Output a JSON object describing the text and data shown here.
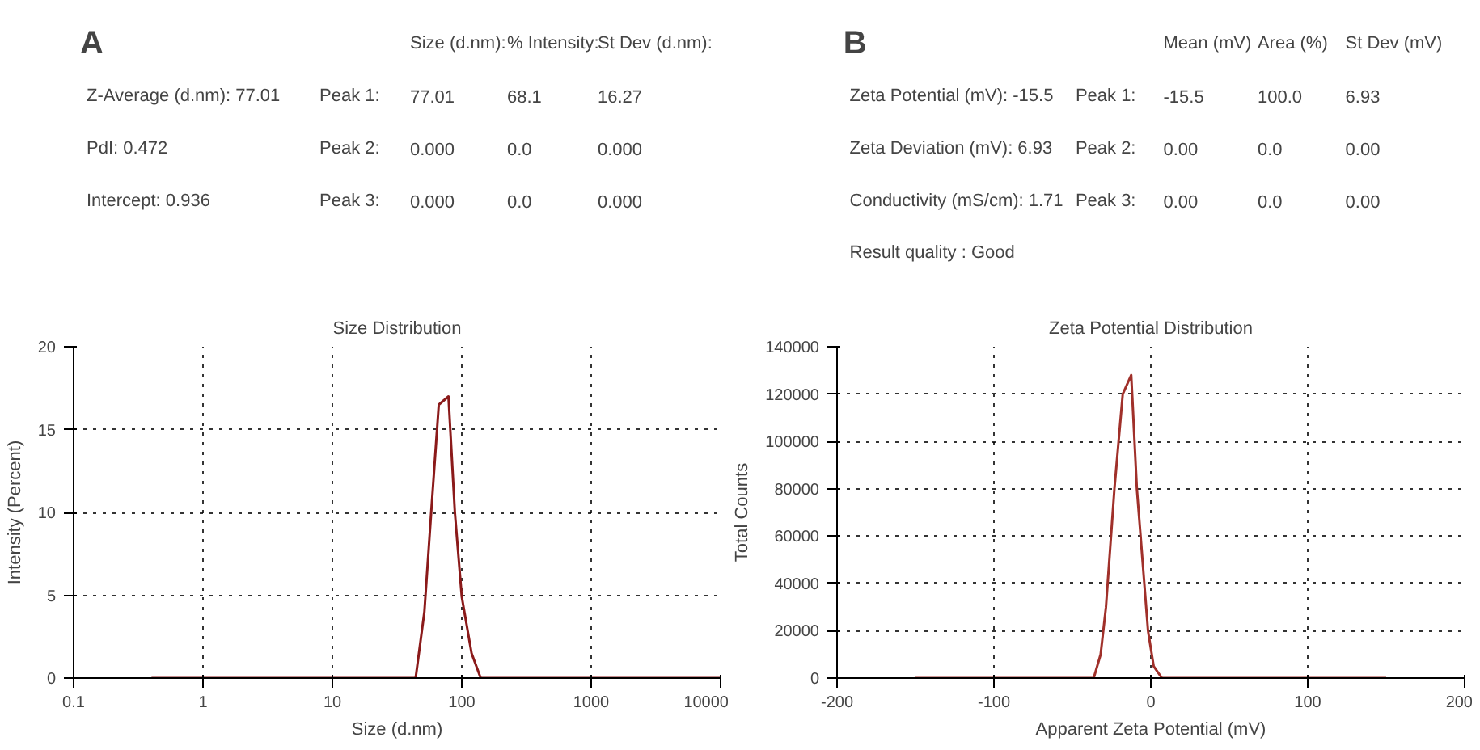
{
  "chart_data": [
    {
      "type": "other",
      "title": "A",
      "annotations": [
        "Z-Average (d.nm): 77.01",
        "PdI: 0.472",
        "Intercept: 0.936",
        "Size (d.nm):",
        "% Intensity:",
        "St Dev (d.nm):",
        "Peak 1:",
        "77.01",
        "68.1",
        "16.27",
        "Peak 2:",
        "0.000",
        "0.0",
        "0.000",
        "Peak 3:",
        "0.000",
        "0.0",
        "0.000"
      ]
    },
    {
      "type": "line",
      "title": "Size Distribution",
      "xlabel": "Size (d.nm)",
      "ylabel": "Intensity (Percent)",
      "log": "x",
      "grid": true,
      "line_style": "solid",
      "xlim": [
        0.1,
        10000
      ],
      "ylim": [
        0,
        20
      ],
      "xticks": [
        0.1,
        1,
        10,
        100,
        1000,
        10000
      ],
      "yticks": [
        0,
        5,
        10,
        15,
        20
      ],
      "series": [
        {
          "color": "#8b1a1a",
          "x": [
            0.4,
            44,
            51.4,
            58,
            66.4,
            78.9,
            88.4,
            100,
            119,
            140,
            10000
          ],
          "values": [
            0,
            0,
            4,
            10,
            16.5,
            17,
            10,
            4.9,
            1.5,
            0,
            0
          ]
        }
      ]
    },
    {
      "type": "other",
      "title": "B",
      "annotations": [
        "Zeta Potential (mV): -15.5",
        "Zeta Deviation (mV): 6.93",
        "Conductivity (mS/cm): 1.71",
        "Result quality : Good",
        "Mean (mV)",
        "Area (%)",
        "St Dev (mV)",
        "Peak 1:",
        "-15.5",
        "100.0",
        "6.93",
        "Peak 2:",
        "0.00",
        "0.0",
        "0.00",
        "Peak 3:",
        "0.00",
        "0.0",
        "0.00"
      ]
    },
    {
      "type": "line",
      "title": "Zeta Potential Distribution",
      "xlabel": "Apparent Zeta Potential (mV)",
      "ylabel": "Total Counts",
      "grid": true,
      "line_style": "solid",
      "xlim": [
        -200,
        200
      ],
      "ylim": [
        0,
        140000
      ],
      "xticks": [
        -200,
        -100,
        0,
        100,
        200
      ],
      "yticks": [
        0,
        20000,
        40000,
        60000,
        80000,
        100000,
        120000,
        140000
      ],
      "series": [
        {
          "color": "#a0302a",
          "x": [
            -150,
            -36.4,
            -32,
            -28.6,
            -23.2,
            -17.9,
            -12.5,
            -8.9,
            -1.8,
            1.8,
            7.1,
            150
          ],
          "values": [
            0,
            0,
            10000,
            30000,
            80000,
            120000,
            128000,
            80000,
            20000,
            5000,
            0,
            0
          ]
        }
      ]
    }
  ]
}
